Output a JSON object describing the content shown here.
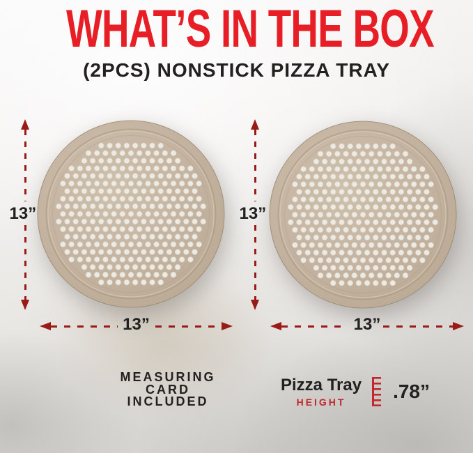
{
  "header": {
    "title": "WHAT’S IN THE BOX",
    "subtitle": "(2PCS) NONSTICK PIZZA TRAY"
  },
  "trays": [
    {
      "id": "tray-1",
      "width_label": "13”",
      "height_label": "13”"
    },
    {
      "id": "tray-2",
      "width_label": "13”",
      "height_label": "13”"
    }
  ],
  "notes": {
    "measuring_card": {
      "lines": [
        "MEASURING",
        "CARD",
        "INCLUDED"
      ]
    },
    "tray_height": {
      "product": "Pizza Tray",
      "label": "HEIGHT",
      "value": ".78”"
    }
  },
  "colors": {
    "title_red": "#e81e26",
    "dimension_red": "#9a1a17",
    "text_dark": "#232021",
    "height_label_red": "#c2272c",
    "tray_tan": "#c3b29e",
    "tray_rim": "#a6957f",
    "hole_white": "#edeae3",
    "background_marble": "#efedeb"
  }
}
